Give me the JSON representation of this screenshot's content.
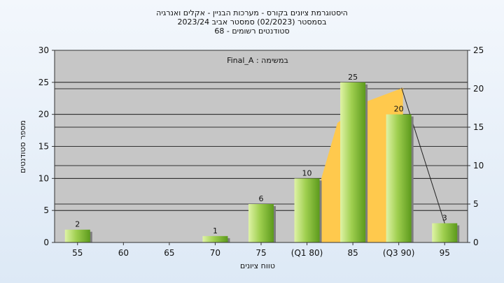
{
  "chart_data": {
    "type": "bar",
    "title_lines": [
      "היסטוגרמת ציונים בקורס - מערכות הבניין - אקלים ואנרגיה",
      "בסמסטר  (02/2023)  סמסטר אביב 2023/24",
      "סטודנטים רשומים - 68"
    ],
    "xlabel": "טווח ציונים",
    "ylabel": "מספר סטודנטים",
    "categories": [
      "55",
      "60",
      "65",
      "70",
      "75",
      "(Q1 80)",
      "85",
      "(Q3 90)",
      "95"
    ],
    "values": [
      2,
      0,
      0,
      1,
      6,
      10,
      25,
      20,
      3
    ],
    "value_labels": [
      "2",
      "",
      "",
      "1",
      "6",
      "10",
      "25",
      "20",
      "3"
    ],
    "ylim_left": [
      0,
      30
    ],
    "yticks_left": [
      0,
      5,
      10,
      15,
      20,
      25,
      30
    ],
    "ylim_right": [
      0,
      25
    ],
    "yticks_right": [
      0,
      5,
      10,
      15,
      20,
      25
    ],
    "box_plot": {
      "q1": 80,
      "q3": 90,
      "max": 95
    },
    "legend_text": "Final_A : במשימה",
    "legend_position": "top-center",
    "grid": true,
    "colors": {
      "bar_light": "#dff3a6",
      "bar_dark": "#5c9a1c",
      "band": "#ffc94d",
      "plot_bg": "#c6c6c6",
      "grid": "#000000"
    }
  }
}
